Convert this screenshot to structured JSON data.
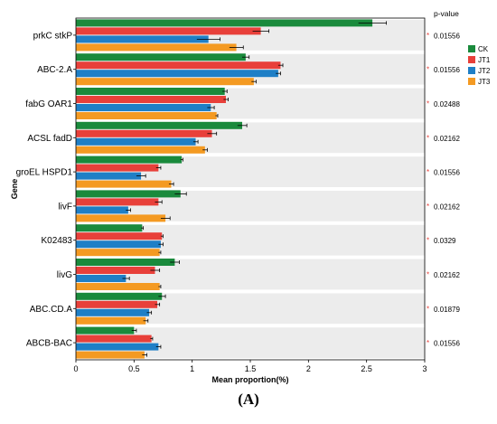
{
  "chart_data": {
    "type": "bar",
    "orientation": "horizontal",
    "categories": [
      "prkC stkP",
      "ABC-2.A",
      "fabG OAR1",
      "ACSL fadD",
      "groEL HSPD1",
      "livF",
      "K02483",
      "livG",
      "ABC.CD.A",
      "ABCB-BAC"
    ],
    "series": [
      {
        "name": "CK",
        "color": "#1a8a3c",
        "values": [
          2.55,
          1.46,
          1.28,
          1.43,
          0.91,
          0.9,
          0.57,
          0.85,
          0.74,
          0.5
        ],
        "errors": [
          0.12,
          0.03,
          0.02,
          0.04,
          0.01,
          0.05,
          0.01,
          0.04,
          0.03,
          0.02
        ]
      },
      {
        "name": "JT1",
        "color": "#e8403a",
        "values": [
          1.59,
          1.76,
          1.29,
          1.17,
          0.71,
          0.71,
          0.74,
          0.68,
          0.7,
          0.65
        ],
        "errors": [
          0.07,
          0.02,
          0.02,
          0.04,
          0.02,
          0.03,
          0.01,
          0.04,
          0.02,
          0.01
        ]
      },
      {
        "name": "JT2",
        "color": "#1f7fc6",
        "values": [
          1.14,
          1.74,
          1.16,
          1.03,
          0.56,
          0.45,
          0.73,
          0.43,
          0.63,
          0.71
        ],
        "errors": [
          0.1,
          0.02,
          0.03,
          0.02,
          0.04,
          0.02,
          0.02,
          0.03,
          0.02,
          0.02
        ]
      },
      {
        "name": "JT3",
        "color": "#f49a22",
        "values": [
          1.38,
          1.53,
          1.21,
          1.11,
          0.82,
          0.77,
          0.72,
          0.72,
          0.6,
          0.59
        ],
        "errors": [
          0.06,
          0.02,
          0.01,
          0.02,
          0.02,
          0.04,
          0.01,
          0.01,
          0.02,
          0.02
        ]
      }
    ],
    "p_value_label": "p-value",
    "p_values": [
      "0.01556",
      "0.01556",
      "0.02488",
      "0.02162",
      "0.01556",
      "0.02162",
      "0.0329",
      "0.02162",
      "0.01879",
      "0.01556"
    ],
    "p_marker": "*",
    "xlabel": "Mean proportion(%)",
    "ylabel": "Gene",
    "xlim": [
      0,
      3
    ],
    "xticks": [
      "0",
      "0.5",
      "1",
      "1.5",
      "2",
      "2.5",
      "3"
    ],
    "xtick_values": [
      0,
      0.5,
      1,
      1.5,
      2,
      2.5,
      3
    ],
    "band_color": "#ececec",
    "grid": false,
    "legend_position": "right"
  },
  "caption": "(A)"
}
